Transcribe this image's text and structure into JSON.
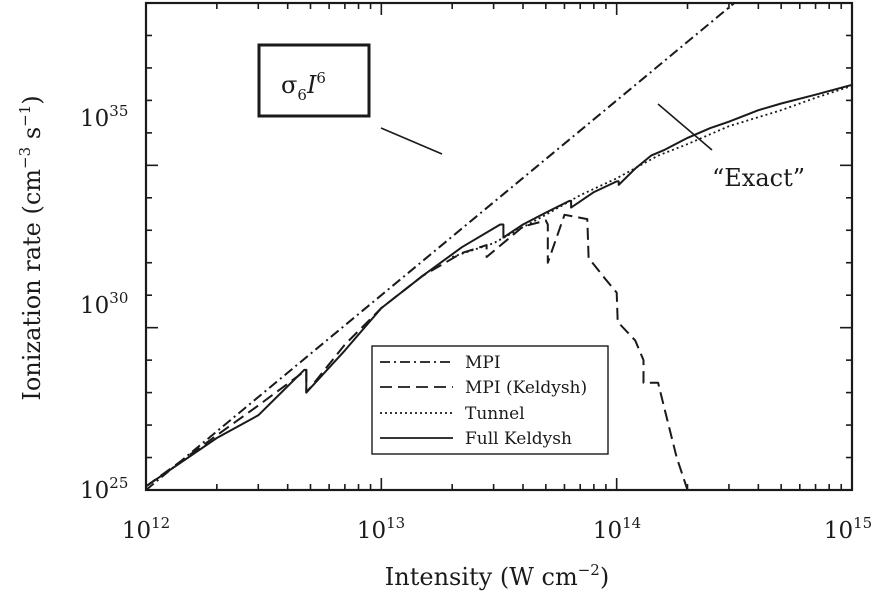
{
  "chart_data": {
    "type": "line",
    "xscale": "log",
    "yscale": "log",
    "xlim": [
      1000000000000.0,
      1000000000000000.0
    ],
    "ylim": [
      1e+25,
      1e+40
    ],
    "xlabel": "Intensity (W cm",
    "xlabel_exp": "−2",
    "xlabel_end": ")",
    "ylabel": "Ionization rate (cm",
    "ylabel_exp1": "−3",
    "ylabel_mid": " s",
    "ylabel_exp2": "−1",
    "ylabel_end": ")",
    "x_ticks": [
      {
        "value": 1000000000000.0,
        "base": "10",
        "exp": "12"
      },
      {
        "value": 10000000000000.0,
        "base": "10",
        "exp": "13"
      },
      {
        "value": 100000000000000.0,
        "base": "10",
        "exp": "14"
      },
      {
        "value": 1000000000000000.0,
        "base": "10",
        "exp": "15"
      }
    ],
    "y_ticks": [
      {
        "value": 1e+25,
        "base": "10",
        "exp": "25"
      },
      {
        "value": 1e+30,
        "base": "10",
        "exp": "30"
      },
      {
        "value": 1e+35,
        "base": "10",
        "exp": "35"
      }
    ],
    "legend_position": "bottom-center",
    "series": [
      {
        "name": "MPI",
        "dash": "dashdot",
        "x": [
          1000000000000.0,
          10000000000000.0,
          100000000000000.0,
          1000000000000000.0
        ],
        "y": [
          1e+25,
          1e+31,
          1e+37,
          1e+43
        ]
      },
      {
        "name": "MPI (Keldysh)",
        "dash": "dashed",
        "x": [
          1000000000000.0,
          3000000000000.0,
          4800000000000.0,
          4800000000000.0,
          7000000000000.0,
          10000000000000.0,
          15000000000000.0,
          22000000000000.0,
          28000000000000.0,
          28000000000000.0,
          40000000000000.0,
          50000000000000.0,
          51000000000000.0,
          51000000000000.0,
          60000000000000.0,
          75000000000000.0,
          76000000000000.0,
          76000000000000.0,
          90000000000000.0,
          100000000000000.0,
          101000000000000.0,
          120000000000000.0,
          130000000000000.0,
          130000000000000.0,
          150000000000000.0,
          160000000000000.0,
          180000000000000.0,
          200000000000000.0
        ],
        "y": [
          1.3e+25,
          4e+27,
          5e+28,
          1e+28,
          3e+29,
          4e+30,
          4e+31,
          2e+32,
          3.5e+32,
          1.5e+32,
          1.3e+33,
          2e+33,
          1.5e+33,
          1e+32,
          3e+33,
          2.2e+33,
          1.4e+32,
          1.4e+32,
          3e+31,
          1.2e+31,
          1.5e+30,
          4e+29,
          1e+29,
          2e+28,
          2e+28,
          3e+27,
          1e+26,
          1e+25
        ]
      },
      {
        "name": "Tunnel",
        "dash": "dotted",
        "x": [
          20000000000000.0,
          30000000000000.0,
          50000000000000.0,
          70000000000000.0,
          100000000000000.0,
          150000000000000.0,
          200000000000000.0,
          300000000000000.0,
          500000000000000.0,
          700000000000000.0,
          1000000000000000.0
        ],
        "y": [
          1.5e+32,
          4e+32,
          3e+33,
          1.2e+34,
          4e+34,
          2e+35,
          4.5e+35,
          1.6e+36,
          5e+36,
          1.2e+37,
          2.8e+37
        ]
      },
      {
        "name": "Full Keldysh",
        "dash": "solid",
        "x": [
          1000000000000.0,
          2000000000000.0,
          3000000000000.0,
          4700000000000.0,
          4800000000000.0,
          4800000000000.0,
          7000000000000.0,
          10000000000000.0,
          15000000000000.0,
          22000000000000.0,
          32000000000000.0,
          33000000000000.0,
          33000000000000.0,
          40000000000000.0,
          50000000000000.0,
          63000000000000.0,
          64000000000000.0,
          64000000000000.0,
          80000000000000.0,
          100000000000000.0,
          102000000000000.0,
          102000000000000.0,
          120000000000000.0,
          140000000000000.0,
          160000000000000.0,
          200000000000000.0,
          250000000000000.0,
          300000000000000.0,
          400000000000000.0,
          500000000000000.0,
          700000000000000.0,
          1000000000000000.0
        ],
        "y": [
          1.3e+25,
          4e+26,
          2e+27,
          5e+28,
          5e+28,
          1e+28,
          2e+29,
          4e+30,
          4e+31,
          3e+32,
          1.5e+33,
          1.5e+33,
          6e+32,
          1.5e+33,
          3.5e+33,
          8e+33,
          8e+33,
          5e+33,
          1.5e+34,
          3.2e+34,
          3.2e+34,
          2.5e+34,
          8e+34,
          2e+35,
          3e+35,
          7e+35,
          1.4e+36,
          2.2e+36,
          5e+36,
          8e+36,
          1.5e+37,
          3e+37
        ]
      }
    ],
    "annotations": {
      "boxed_label_sigma": "σ",
      "boxed_label_sub": "6",
      "boxed_label_I": "I",
      "boxed_label_sup": "6",
      "exact_label": "“Exact”"
    }
  }
}
